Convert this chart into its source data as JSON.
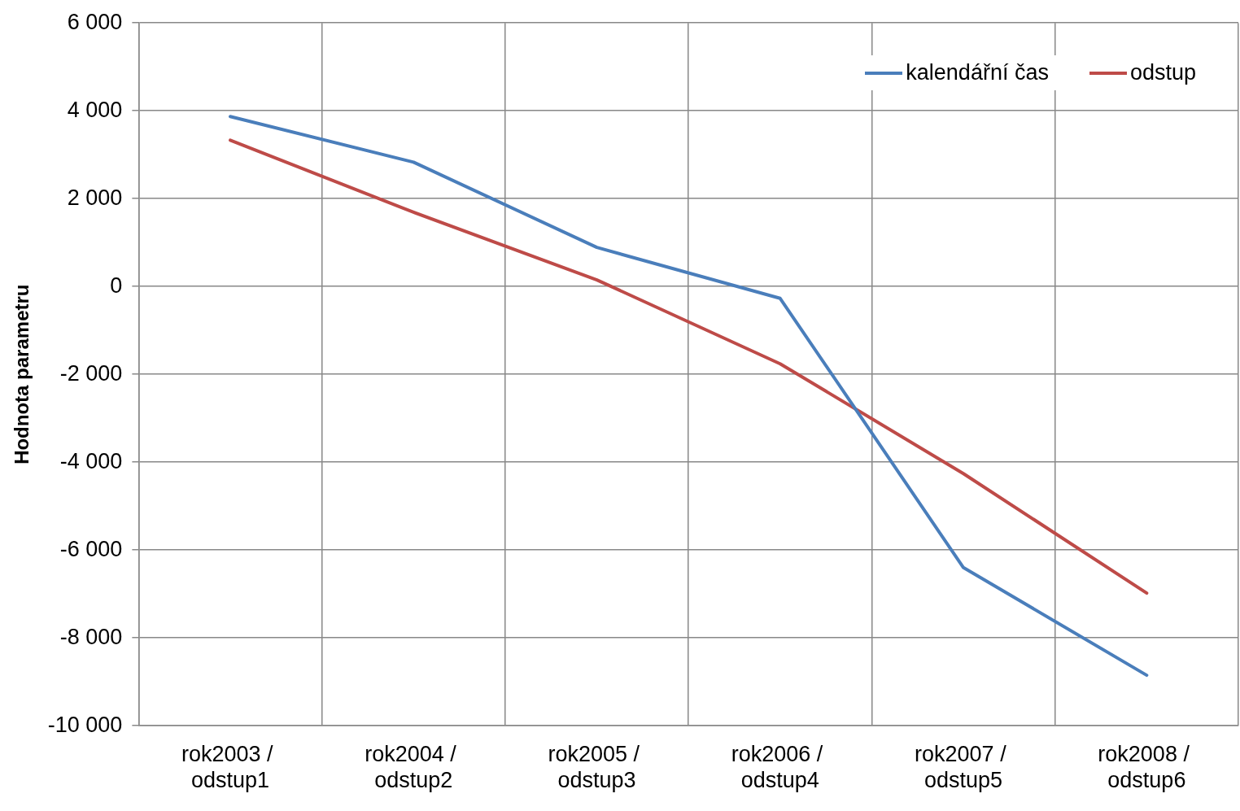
{
  "chart_data": {
    "type": "line",
    "ylabel": "Hodnota parametru",
    "categories": [
      "rok2003 / odstup1",
      "rok2004 / odstup2",
      "rok2005 / odstup3",
      "rok2006 / odstup4",
      "rok2007 / odstup5",
      "rok2008 / odstup6"
    ],
    "series": [
      {
        "name": "kalendářní čas",
        "color": "#4a7ebb",
        "values": [
          3870,
          2830,
          890,
          -270,
          -6400,
          -8850
        ]
      },
      {
        "name": "odstup",
        "color": "#be4b48",
        "values": [
          3330,
          1690,
          150,
          -1760,
          -4260,
          -6980
        ]
      }
    ],
    "ylim": [
      -10000,
      6000
    ],
    "yticks": [
      {
        "value": -10000,
        "label": "-10 000"
      },
      {
        "value": -8000,
        "label": "-8 000"
      },
      {
        "value": -6000,
        "label": "-6 000"
      },
      {
        "value": -4000,
        "label": "-4 000"
      },
      {
        "value": -2000,
        "label": "-2 000"
      },
      0,
      {
        "value": 2000,
        "label": "2 000"
      },
      {
        "value": 4000,
        "label": "4 000"
      },
      {
        "value": 6000,
        "label": "6 000"
      }
    ],
    "grid": true,
    "legend": "top right",
    "marker": "none",
    "line_style": "solid"
  }
}
